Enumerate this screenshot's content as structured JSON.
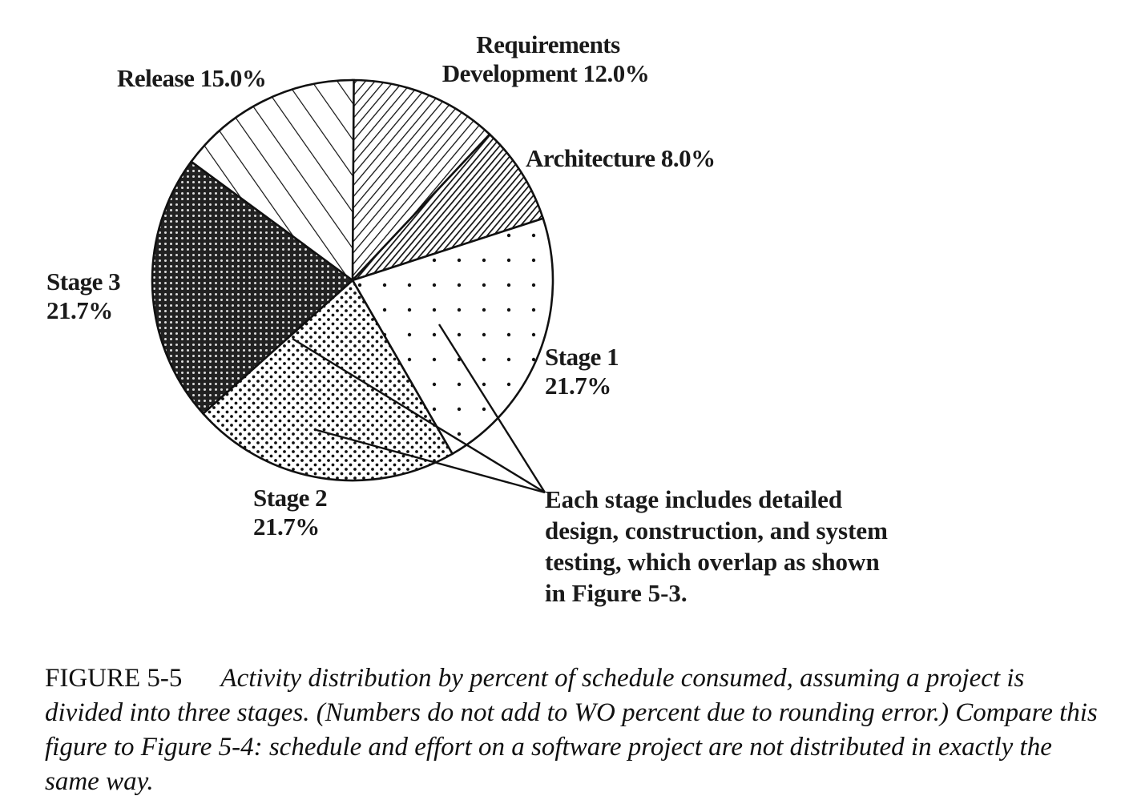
{
  "chart_data": {
    "type": "pie",
    "start": "top",
    "direction": "clockwise",
    "slices": [
      {
        "label": "Requirements Development",
        "label_lines": [
          "Requirements",
          "Development 12.0%"
        ],
        "value": 12.0,
        "pattern": "fine-diagonal-hatch"
      },
      {
        "label": "Architecture",
        "label_lines": [
          "Architecture 8.0%"
        ],
        "value": 8.0,
        "pattern": "dense-diagonal-hatch"
      },
      {
        "label": "Stage 1",
        "label_lines": [
          "Stage 1",
          "21.7%"
        ],
        "value": 21.7,
        "pattern": "sparse-dots"
      },
      {
        "label": "Stage 2",
        "label_lines": [
          "Stage 2",
          "21.7%"
        ],
        "value": 21.7,
        "pattern": "medium-dots"
      },
      {
        "label": "Stage 3",
        "label_lines": [
          "Stage 3",
          "21.7%"
        ],
        "value": 21.7,
        "pattern": "dense-dark-dots"
      },
      {
        "label": "Release",
        "label_lines": [
          "Release 15.0%"
        ],
        "value": 15.0,
        "pattern": "wide-diagonal-hatch"
      }
    ],
    "annotation": [
      "Each stage includes detailed",
      "design, construction, and system",
      "testing, which overlap as shown",
      "in Figure 5-3."
    ],
    "legend": "none"
  },
  "caption": {
    "figure": "FIGURE 5-5",
    "text": "Activity distribution by percent of schedule consumed, assuming a project is divided into three stages. (Numbers do not add to WO percent due to rounding error.) Compare this figure to Figure 5-4: schedule and effort on a software project are not distributed in exactly the same way."
  }
}
